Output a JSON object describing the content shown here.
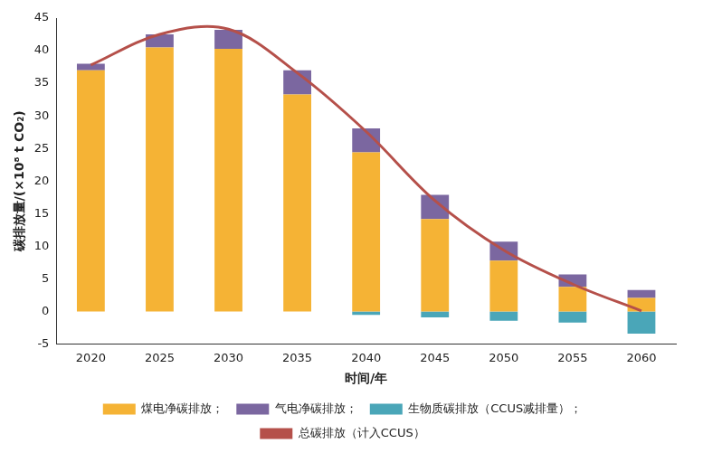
{
  "chart_data": {
    "type": "bar",
    "x_label": "时间/年",
    "y_label": "碳排放量/(×10⁸ t CO₂)",
    "categories": [
      "2020",
      "2025",
      "2030",
      "2035",
      "2040",
      "2045",
      "2050",
      "2055",
      "2060"
    ],
    "series": [
      {
        "name": "煤电净碳排放；",
        "type": "bar",
        "color": "#f5b335",
        "values": [
          37,
          40.5,
          40.3,
          33.3,
          24.4,
          14.2,
          7.8,
          3.8,
          2.1
        ]
      },
      {
        "name": "气电净碳排放；",
        "type": "bar",
        "color": "#7b67a0",
        "values": [
          1,
          2,
          2.9,
          3.7,
          3.7,
          3.7,
          2.9,
          1.9,
          1.2
        ]
      },
      {
        "name": "生物质碳排放（CCUS减排量）；",
        "type": "bar",
        "color": "#4aa6b8",
        "values": [
          0,
          0,
          0,
          0,
          -0.5,
          -0.9,
          -1.4,
          -1.7,
          -3.4
        ]
      },
      {
        "name": "总碳排放（计入CCUS）",
        "type": "line",
        "color": "#b5504a",
        "values": [
          37.8,
          42.5,
          43.3,
          36.6,
          27.6,
          17,
          9.4,
          4.2,
          0.1
        ]
      }
    ],
    "ylim": [
      -5,
      45
    ],
    "yticks": [
      -5,
      0,
      5,
      10,
      15,
      20,
      25,
      30,
      35,
      40,
      45
    ],
    "stacked": true,
    "grid": false,
    "legend": "bottom"
  }
}
